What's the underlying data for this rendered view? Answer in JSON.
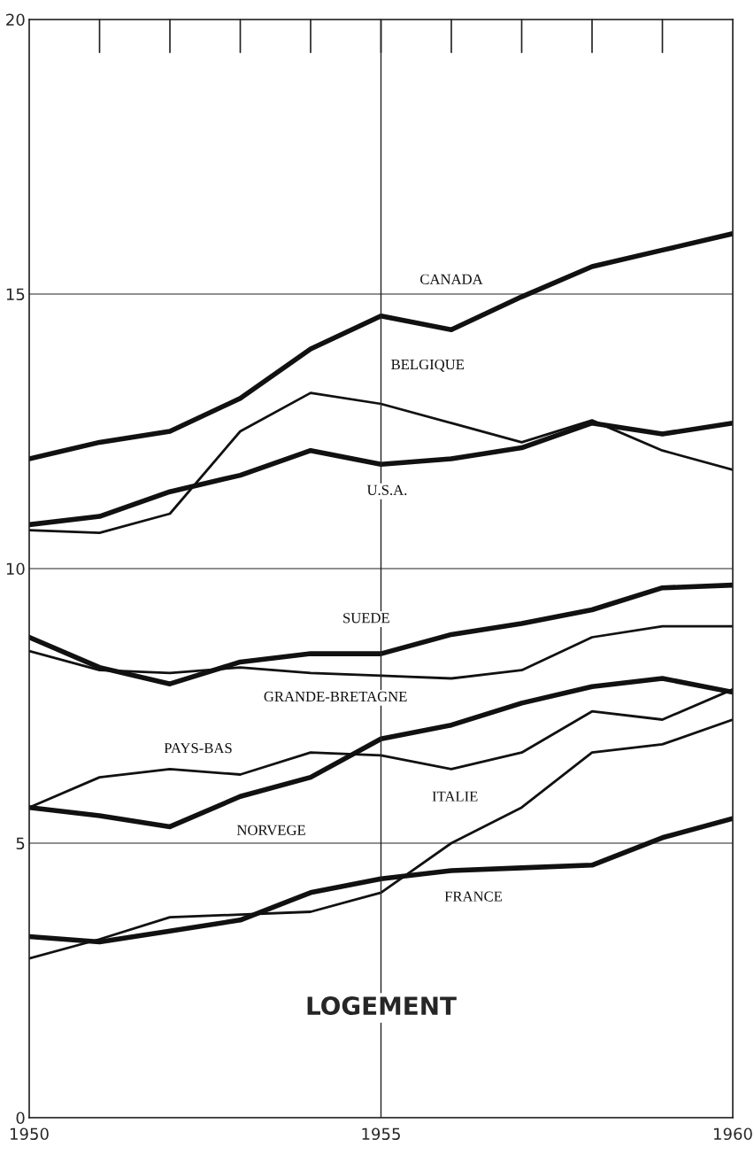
{
  "chart_data": {
    "type": "line",
    "title": "LOGEMENT",
    "x": [
      1950,
      1951,
      1952,
      1953,
      1954,
      1955,
      1956,
      1957,
      1958,
      1959,
      1960
    ],
    "series": [
      {
        "name": "CANADA",
        "color": "#111111",
        "values": [
          12.0,
          12.3,
          12.5,
          13.1,
          14.0,
          14.6,
          14.35,
          14.95,
          15.5,
          15.8,
          16.1
        ]
      },
      {
        "name": "BELGIQUE",
        "color": "#111111",
        "values": [
          10.7,
          10.65,
          11.0,
          12.5,
          13.2,
          13.0,
          12.65,
          12.3,
          12.7,
          12.15,
          11.8
        ]
      },
      {
        "name": "U.S.A.",
        "color": "#111111",
        "values": [
          10.8,
          10.95,
          11.4,
          11.7,
          12.15,
          11.9,
          12.0,
          12.2,
          12.65,
          12.45,
          12.65
        ]
      },
      {
        "name": "SUEDE",
        "color": "#111111",
        "values": [
          8.75,
          8.2,
          7.9,
          8.3,
          8.45,
          8.45,
          8.8,
          9.0,
          9.25,
          9.65,
          9.7
        ]
      },
      {
        "name": "GRANDE-BRETAGNE",
        "color": "#111111",
        "values": [
          8.5,
          8.15,
          8.1,
          8.2,
          8.1,
          8.05,
          8.0,
          8.15,
          8.75,
          8.95,
          8.95
        ]
      },
      {
        "name": "PAYS-BAS",
        "color": "#111111",
        "values": [
          5.65,
          6.2,
          6.35,
          6.25,
          6.65,
          6.6,
          6.35,
          6.65,
          7.4,
          7.25,
          7.8
        ]
      },
      {
        "name": "NORVEGE",
        "color": "#111111",
        "values": [
          5.65,
          5.5,
          5.3,
          5.85,
          6.2,
          6.9,
          7.15,
          7.55,
          7.85,
          8.0,
          7.75
        ]
      },
      {
        "name": "ITALIE",
        "color": "#111111",
        "values": [
          2.9,
          3.25,
          3.65,
          3.7,
          3.75,
          4.1,
          5.0,
          5.65,
          6.65,
          6.8,
          7.25
        ]
      },
      {
        "name": "FRANCE",
        "color": "#111111",
        "values": [
          3.3,
          3.2,
          3.4,
          3.6,
          4.1,
          4.35,
          4.5,
          4.55,
          4.6,
          5.1,
          5.45
        ]
      }
    ],
    "xlim": [
      1950,
      1960
    ],
    "ylim": [
      0,
      20
    ],
    "xticks": [
      1950,
      1955,
      1960
    ],
    "yticks": [
      0,
      5,
      10,
      15,
      20
    ],
    "grid": "y",
    "ref_lines": [
      {
        "axis": "x",
        "value": 1955
      }
    ],
    "line_style": "solid",
    "legend": false
  }
}
